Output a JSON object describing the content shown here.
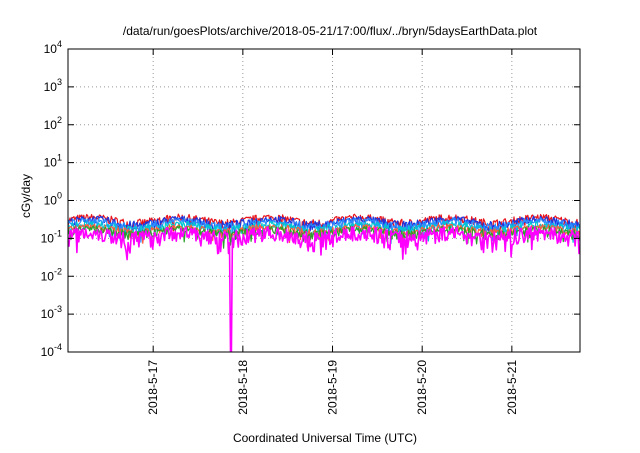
{
  "chart_data": {
    "type": "line",
    "title": "/data/run/goesPlots/archive/2018-05-21/17:00/flux/../bryn/5daysEarthData.plot",
    "xlabel": "Coordinated Universal Time (UTC)",
    "ylabel": "cGy/day",
    "yscale": "log",
    "ylim": [
      0.0001,
      10000
    ],
    "y_ticks": [
      {
        "value": 0.0001,
        "base": "10",
        "exp": "-4"
      },
      {
        "value": 0.001,
        "base": "10",
        "exp": "-3"
      },
      {
        "value": 0.01,
        "base": "10",
        "exp": "-2"
      },
      {
        "value": 0.1,
        "base": "10",
        "exp": "-1"
      },
      {
        "value": 1,
        "base": "10",
        "exp": "0"
      },
      {
        "value": 10,
        "base": "10",
        "exp": "1"
      },
      {
        "value": 100,
        "base": "10",
        "exp": "2"
      },
      {
        "value": 1000,
        "base": "10",
        "exp": "3"
      },
      {
        "value": 10000,
        "base": "10",
        "exp": "4"
      }
    ],
    "x_range_days": [
      0,
      5.71
    ],
    "x_ticks": [
      {
        "label": "2018-5-17",
        "day": 0.95
      },
      {
        "label": "2018-5-18",
        "day": 1.95
      },
      {
        "label": "2018-5-19",
        "day": 2.95
      },
      {
        "label": "2018-5-20",
        "day": 3.95
      },
      {
        "label": "2018-5-21",
        "day": 4.95
      }
    ],
    "grid": true,
    "series": [
      {
        "color": "#e8141c",
        "base": 0.3,
        "amp": 0.1,
        "noise": 0.08
      },
      {
        "color": "#1a34e0",
        "base": 0.27,
        "amp": 0.09,
        "noise": 0.07
      },
      {
        "color": "#2a8cff",
        "base": 0.24,
        "amp": 0.08,
        "noise": 0.06
      },
      {
        "color": "#00c8d2",
        "base": 0.2,
        "amp": 0.06,
        "noise": 0.05
      },
      {
        "color": "#ff5a3c",
        "base": 0.17,
        "amp": 0.05,
        "noise": 0.04
      },
      {
        "color": "#2ca02c",
        "base": 0.15,
        "amp": 0.04,
        "noise": 0.04
      },
      {
        "color": "#ff00ff",
        "base": 0.12,
        "amp": 0.04,
        "noise": 0.06,
        "dropout_day": 1.82,
        "dropout_min": 0.0001
      }
    ]
  }
}
